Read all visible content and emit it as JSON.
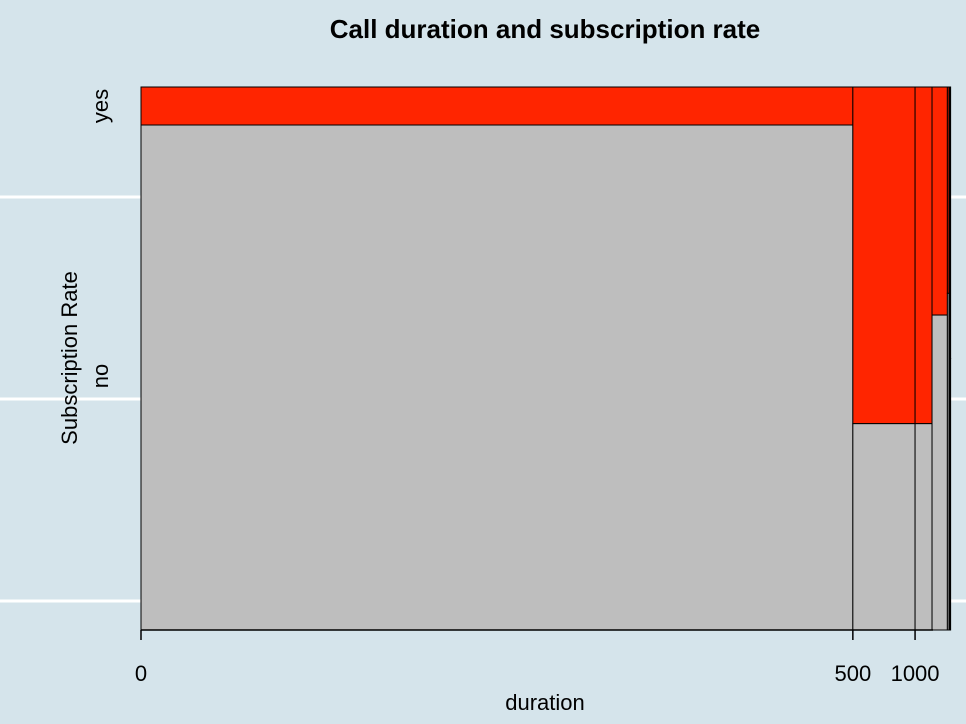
{
  "chart_data": {
    "type": "mosaic",
    "title": "Call duration and subscription rate",
    "xlabel": "duration",
    "ylabel": "Subscription Rate",
    "x_ticks": [
      "0",
      "500",
      "1000"
    ],
    "y_categories": [
      "no",
      "yes"
    ],
    "bins": [
      {
        "start": 0,
        "end": 500,
        "share": 0.881,
        "yes_fraction": 0.07
      },
      {
        "start": 500,
        "end": 1000,
        "share": 0.077,
        "yes_fraction": 0.62
      },
      {
        "start": 1000,
        "end": 1500,
        "share": 0.021,
        "yes_fraction": 0.62
      },
      {
        "start": 1500,
        "end": 2000,
        "share": 0.019,
        "yes_fraction": 0.42
      },
      {
        "start": 2000,
        "end": 2500,
        "share": 0.002,
        "yes_fraction": 0.38
      },
      {
        "start": 2500,
        "end": 3000,
        "share": 0.001,
        "yes_fraction": 0.42
      },
      {
        "start": 3000,
        "end": 3500,
        "share": 0.001,
        "yes_fraction": 0.5
      }
    ],
    "colors": {
      "yes": "#ff2500",
      "no": "#bebebe",
      "background": "#d5e4eb",
      "gridline": "#ffffff"
    },
    "grid": true
  }
}
